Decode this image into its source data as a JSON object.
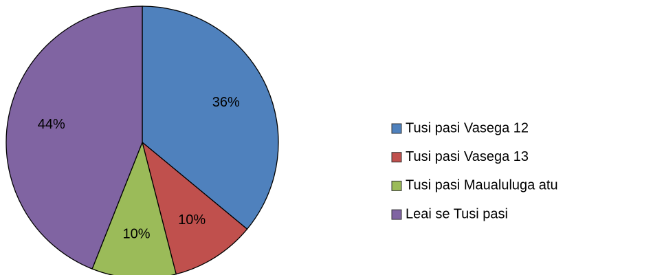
{
  "chart_data": {
    "type": "pie",
    "categories": [
      "Tusi pasi Vasega 12",
      "Tusi pasi Vasega 13",
      "Tusi pasi Maualuluga atu",
      "Leai se Tusi pasi"
    ],
    "values": [
      36,
      10,
      10,
      44
    ],
    "value_labels": [
      "36%",
      "10%",
      "10%",
      "44%"
    ],
    "colors": [
      "#4f81bd",
      "#c0504d",
      "#9bbb59",
      "#8064a2"
    ],
    "legend": "right"
  }
}
